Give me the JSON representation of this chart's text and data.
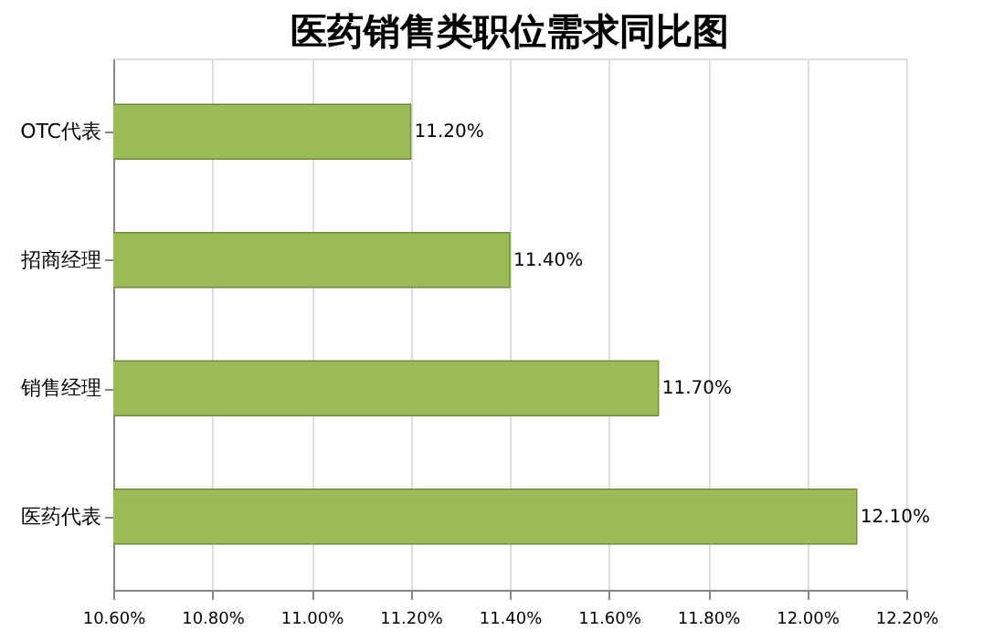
{
  "chart_data": {
    "type": "bar",
    "orientation": "horizontal",
    "title": "医药销售类职位需求同比图",
    "categories": [
      "OTC代表",
      "招商经理",
      "销售经理",
      "医药代表"
    ],
    "values": [
      11.2,
      11.4,
      11.7,
      12.1
    ],
    "value_labels": [
      "11.20%",
      "11.40%",
      "11.70%",
      "12.10%"
    ],
    "color": "#9bbb59",
    "xlim": [
      10.6,
      12.2
    ],
    "xticks": [
      {
        "value": 10.6,
        "label": "10.60%"
      },
      {
        "value": 10.8,
        "label": "10.80%"
      },
      {
        "value": 11.0,
        "label": "11.00%"
      },
      {
        "value": 11.2,
        "label": "11.20%"
      },
      {
        "value": 11.4,
        "label": "11.40%"
      },
      {
        "value": 11.6,
        "label": "11.60%"
      },
      {
        "value": 11.8,
        "label": "11.80%"
      },
      {
        "value": 12.0,
        "label": "12.00%"
      },
      {
        "value": 12.2,
        "label": "12.20%"
      }
    ],
    "grid": "x"
  }
}
